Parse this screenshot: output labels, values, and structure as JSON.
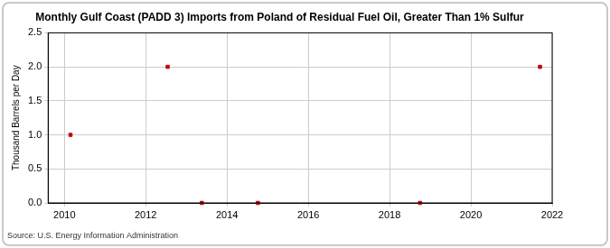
{
  "chart_data": {
    "type": "scatter",
    "title": "Monthly Gulf Coast (PADD 3) Imports from Poland of Residual Fuel Oil, Greater Than 1% Sulfur",
    "y_label": "Thousand Barrels per Day",
    "source": "Source: U.S. Energy Information Administration",
    "x": [
      2010.15,
      2012.54,
      2013.38,
      2014.76,
      2018.75,
      2021.7
    ],
    "values": [
      1.0,
      2.0,
      0.0,
      0.0,
      0.0,
      2.0
    ],
    "color": "#cc0000",
    "marker": "square",
    "xlim": [
      2009.6,
      2022
    ],
    "xticks": [
      2010,
      2012,
      2014,
      2016,
      2018,
      2020,
      2022
    ],
    "ylim": [
      0,
      2.5
    ],
    "yticks": [
      {
        "value": 0,
        "label": "0.0"
      },
      {
        "value": 0.5,
        "label": "0.5"
      },
      {
        "value": 1,
        "label": "1.0"
      },
      {
        "value": 1.5,
        "label": "1.5"
      },
      {
        "value": 2,
        "label": "2.0"
      },
      {
        "value": 2.5,
        "label": "2.5"
      }
    ],
    "grid": true
  }
}
